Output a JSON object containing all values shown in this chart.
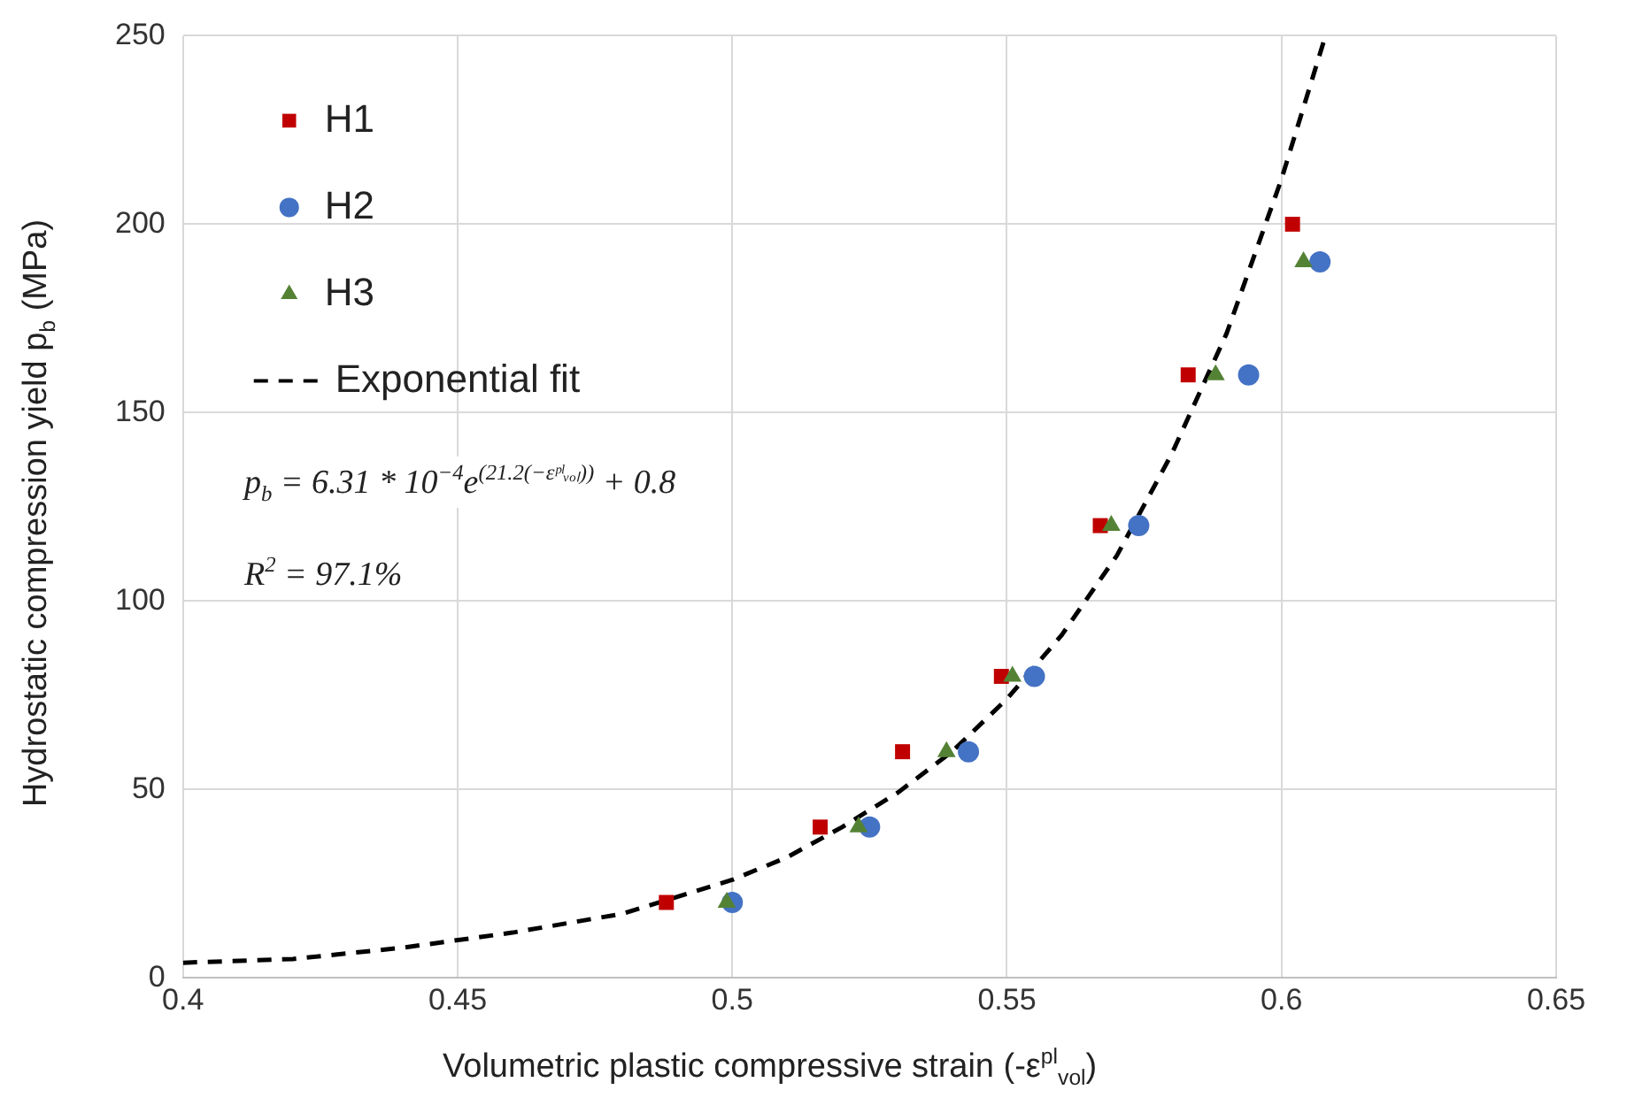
{
  "chart_data": {
    "type": "scatter",
    "xlabel": "Volumetric plastic compressive strain   (-ε$^{pl}$$_{vol}$)",
    "ylabel": "Hydrostatic compression yield   p$_{b}$   (MPa)",
    "xlim": [
      0.4,
      0.65
    ],
    "xticks": [
      0.4,
      0.45,
      0.5,
      0.55,
      0.6,
      0.65
    ],
    "ylim": [
      0,
      250
    ],
    "yticks": [
      0,
      50,
      100,
      150,
      200,
      250
    ],
    "grid": true,
    "legend": "top left",
    "annotations": [
      "p$_{b}$ = 6.31 * 10$^{−4}$e$^{(21.2(−εᵖˡᵥₒₗ))}$ + 0.8",
      "R$^{2}$ = 97.1%"
    ],
    "series": [
      {
        "name": "H1",
        "type": "scatter",
        "marker": "square",
        "color": "#c00000",
        "x": [
          0.488,
          0.516,
          0.531,
          0.549,
          0.567,
          0.583,
          0.602
        ],
        "values": [
          20,
          40,
          60,
          80,
          120,
          160,
          200
        ]
      },
      {
        "name": "H2",
        "type": "scatter",
        "marker": "circle",
        "color": "#4472c4",
        "x": [
          0.5,
          0.525,
          0.543,
          0.555,
          0.574,
          0.594,
          0.607
        ],
        "values": [
          20,
          40,
          60,
          80,
          120,
          160,
          190
        ]
      },
      {
        "name": "H3",
        "type": "scatter",
        "marker": "triangle",
        "color": "#548235",
        "x": [
          0.499,
          0.523,
          0.539,
          0.551,
          0.569,
          0.588,
          0.604
        ],
        "values": [
          20,
          40,
          60,
          80,
          120,
          160,
          190
        ]
      },
      {
        "name": "Exponential fit",
        "type": "line",
        "marker": "none",
        "line_style": "dashed",
        "color": "#000000",
        "x": [
          0.4,
          0.42,
          0.44,
          0.46,
          0.48,
          0.5,
          0.51,
          0.52,
          0.53,
          0.54,
          0.55,
          0.56,
          0.57,
          0.58,
          0.59,
          0.6,
          0.608
        ],
        "values": [
          4,
          5,
          8,
          12,
          17,
          26,
          32,
          40,
          49,
          60,
          74,
          91,
          112,
          139,
          171,
          212,
          250
        ]
      }
    ]
  }
}
